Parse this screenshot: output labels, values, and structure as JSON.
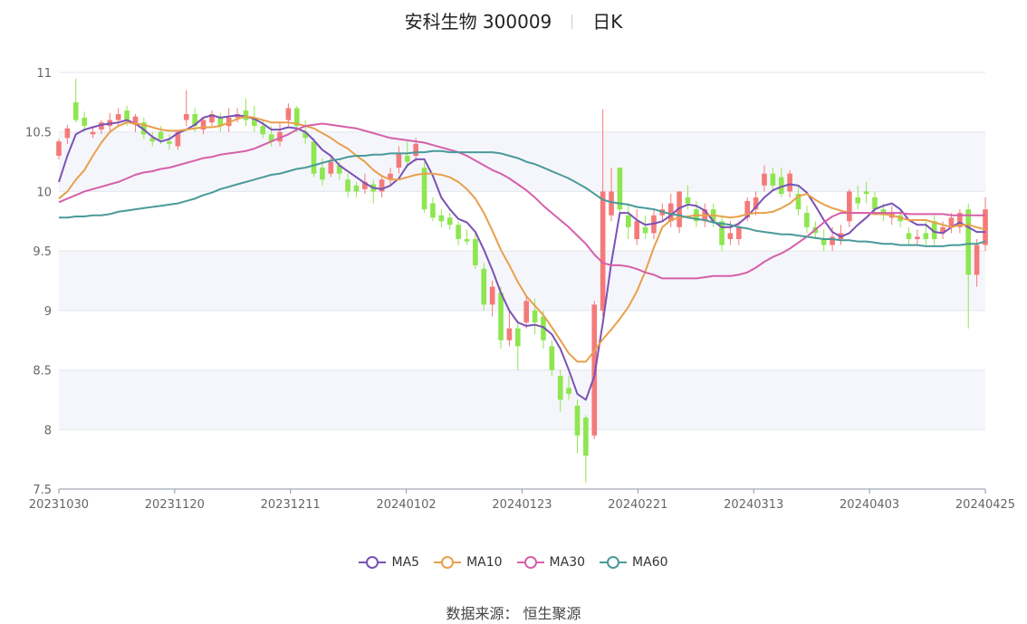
{
  "header": {
    "title": "安科生物 300009",
    "period": "日K"
  },
  "source": "数据来源： 恒生聚源",
  "colors": {
    "up": "#f47a7a",
    "down": "#8ee650",
    "ma5": "#7a52b5",
    "ma10": "#e8a04c",
    "ma30": "#d660a9",
    "ma60": "#4a9a9a"
  },
  "chart_data": {
    "type": "candlestick",
    "ylim": [
      7.5,
      11
    ],
    "yticks": [
      "7.5",
      "8",
      "8.5",
      "9",
      "9.5",
      "10",
      "10.5",
      "11"
    ],
    "xticks": [
      "20231030",
      "20231120",
      "20231211",
      "20240102",
      "20240123",
      "20240221",
      "20240313",
      "20240403",
      "20240425"
    ],
    "grid": true,
    "legend_position": "bottom",
    "candles": [
      [
        10.3,
        10.42,
        10.27,
        10.44
      ],
      [
        10.45,
        10.53,
        10.4,
        10.56
      ],
      [
        10.75,
        10.6,
        10.58,
        10.95
      ],
      [
        10.62,
        10.55,
        10.5,
        10.67
      ],
      [
        10.48,
        10.5,
        10.45,
        10.55
      ],
      [
        10.52,
        10.58,
        10.48,
        10.6
      ],
      [
        10.55,
        10.6,
        10.5,
        10.66
      ],
      [
        10.6,
        10.65,
        10.55,
        10.7
      ],
      [
        10.68,
        10.6,
        10.55,
        10.72
      ],
      [
        10.56,
        10.63,
        10.5,
        10.65
      ],
      [
        10.58,
        10.48,
        10.44,
        10.62
      ],
      [
        10.45,
        10.42,
        10.38,
        10.5
      ],
      [
        10.5,
        10.44,
        10.4,
        10.55
      ],
      [
        10.42,
        10.4,
        10.35,
        10.48
      ],
      [
        10.38,
        10.5,
        10.35,
        10.52
      ],
      [
        10.6,
        10.65,
        10.55,
        10.85
      ],
      [
        10.65,
        10.55,
        10.5,
        10.7
      ],
      [
        10.52,
        10.6,
        10.48,
        10.62
      ],
      [
        10.58,
        10.65,
        10.55,
        10.68
      ],
      [
        10.62,
        10.55,
        10.5,
        10.66
      ],
      [
        10.55,
        10.62,
        10.5,
        10.7
      ],
      [
        10.62,
        10.65,
        10.58,
        10.7
      ],
      [
        10.68,
        10.6,
        10.55,
        10.78
      ],
      [
        10.62,
        10.55,
        10.5,
        10.72
      ],
      [
        10.55,
        10.48,
        10.45,
        10.6
      ],
      [
        10.48,
        10.42,
        10.38,
        10.55
      ],
      [
        10.42,
        10.5,
        10.38,
        10.58
      ],
      [
        10.6,
        10.7,
        10.55,
        10.74
      ],
      [
        10.7,
        10.55,
        10.5,
        10.72
      ],
      [
        10.5,
        10.45,
        10.4,
        10.6
      ],
      [
        10.42,
        10.15,
        10.12,
        10.45
      ],
      [
        10.2,
        10.1,
        10.05,
        10.28
      ],
      [
        10.15,
        10.25,
        10.12,
        10.3
      ],
      [
        10.22,
        10.15,
        10.1,
        10.25
      ],
      [
        10.1,
        10.0,
        9.95,
        10.15
      ],
      [
        10.05,
        10.0,
        9.95,
        10.08
      ],
      [
        10.02,
        10.08,
        9.98,
        10.15
      ],
      [
        10.06,
        10.0,
        9.9,
        10.1
      ],
      [
        10.0,
        10.1,
        9.95,
        10.12
      ],
      [
        10.1,
        10.15,
        10.05,
        10.2
      ],
      [
        10.2,
        10.32,
        10.15,
        10.38
      ],
      [
        10.3,
        10.25,
        10.2,
        10.42
      ],
      [
        10.3,
        10.4,
        10.25,
        10.45
      ],
      [
        10.2,
        9.85,
        9.82,
        10.25
      ],
      [
        9.9,
        9.78,
        9.75,
        9.95
      ],
      [
        9.8,
        9.75,
        9.7,
        9.85
      ],
      [
        9.78,
        9.72,
        9.68,
        9.82
      ],
      [
        9.72,
        9.6,
        9.55,
        9.75
      ],
      [
        9.6,
        9.58,
        9.55,
        9.68
      ],
      [
        9.6,
        9.38,
        9.35,
        9.65
      ],
      [
        9.35,
        9.05,
        9.0,
        9.4
      ],
      [
        9.05,
        9.2,
        8.95,
        9.25
      ],
      [
        9.15,
        8.75,
        8.68,
        9.2
      ],
      [
        8.75,
        8.85,
        8.7,
        9.0
      ],
      [
        8.85,
        8.7,
        8.5,
        8.9
      ],
      [
        8.9,
        9.08,
        8.85,
        9.12
      ],
      [
        9.0,
        8.9,
        8.8,
        9.1
      ],
      [
        8.95,
        8.75,
        8.68,
        9.0
      ],
      [
        8.7,
        8.5,
        8.45,
        8.75
      ],
      [
        8.45,
        8.25,
        8.15,
        8.5
      ],
      [
        8.35,
        8.3,
        8.25,
        8.45
      ],
      [
        8.2,
        7.95,
        7.8,
        8.25
      ],
      [
        8.1,
        7.78,
        7.55,
        8.12
      ],
      [
        7.95,
        9.05,
        7.92,
        9.08
      ],
      [
        9.0,
        10.0,
        8.95,
        10.69
      ],
      [
        9.8,
        10.0,
        9.75,
        10.2
      ],
      [
        10.2,
        9.85,
        9.8,
        10.2
      ],
      [
        9.8,
        9.7,
        9.6,
        9.9
      ],
      [
        9.6,
        9.75,
        9.55,
        9.85
      ],
      [
        9.7,
        9.65,
        9.6,
        9.8
      ],
      [
        9.65,
        9.8,
        9.6,
        9.85
      ],
      [
        9.8,
        9.85,
        9.75,
        9.9
      ],
      [
        9.75,
        9.9,
        9.7,
        9.98
      ],
      [
        9.7,
        10.0,
        9.65,
        10.0
      ],
      [
        9.95,
        9.9,
        9.85,
        10.05
      ],
      [
        9.85,
        9.75,
        9.7,
        9.92
      ],
      [
        9.75,
        9.85,
        9.7,
        9.9
      ],
      [
        9.85,
        9.75,
        9.7,
        9.9
      ],
      [
        9.75,
        9.55,
        9.5,
        9.8
      ],
      [
        9.6,
        9.65,
        9.55,
        9.75
      ],
      [
        9.6,
        9.7,
        9.55,
        9.75
      ],
      [
        9.78,
        9.92,
        9.75,
        9.95
      ],
      [
        9.85,
        9.95,
        9.8,
        10.0
      ],
      [
        10.05,
        10.15,
        10.0,
        10.22
      ],
      [
        10.15,
        10.05,
        10.0,
        10.2
      ],
      [
        10.12,
        9.98,
        9.95,
        10.2
      ],
      [
        10.0,
        10.15,
        9.95,
        10.18
      ],
      [
        9.98,
        9.85,
        9.8,
        10.05
      ],
      [
        9.82,
        9.7,
        9.65,
        9.88
      ],
      [
        9.7,
        9.65,
        9.6,
        9.75
      ],
      [
        9.6,
        9.55,
        9.5,
        9.68
      ],
      [
        9.55,
        9.62,
        9.5,
        9.7
      ],
      [
        9.6,
        9.65,
        9.55,
        9.72
      ],
      [
        9.75,
        10.0,
        9.7,
        10.02
      ],
      [
        9.95,
        9.9,
        9.85,
        10.05
      ],
      [
        10.0,
        9.98,
        9.9,
        10.08
      ],
      [
        9.95,
        9.85,
        9.8,
        10.0
      ],
      [
        9.85,
        9.8,
        9.75,
        9.9
      ],
      [
        9.78,
        9.82,
        9.72,
        9.88
      ],
      [
        9.8,
        9.75,
        9.7,
        9.85
      ],
      [
        9.65,
        9.6,
        9.55,
        9.7
      ],
      [
        9.6,
        9.62,
        9.55,
        9.68
      ],
      [
        9.65,
        9.6,
        9.55,
        9.75
      ],
      [
        9.75,
        9.6,
        9.55,
        9.8
      ],
      [
        9.65,
        9.7,
        9.6,
        9.75
      ],
      [
        9.7,
        9.78,
        9.65,
        9.82
      ],
      [
        9.7,
        9.82,
        9.65,
        9.85
      ],
      [
        9.85,
        9.3,
        8.85,
        9.9
      ],
      [
        9.3,
        9.55,
        9.2,
        9.6
      ],
      [
        9.55,
        9.85,
        9.5,
        9.95
      ]
    ],
    "series": [
      {
        "name": "MA5",
        "values": [
          10.08,
          10.3,
          10.48,
          10.52,
          10.54,
          10.56,
          10.57,
          10.58,
          10.6,
          10.57,
          10.52,
          10.46,
          10.42,
          10.44,
          10.49,
          10.52,
          10.56,
          10.62,
          10.64,
          10.62,
          10.63,
          10.64,
          10.63,
          10.61,
          10.57,
          10.52,
          10.52,
          10.54,
          10.53,
          10.5,
          10.43,
          10.35,
          10.3,
          10.22,
          10.17,
          10.12,
          10.07,
          10.03,
          10.02,
          10.05,
          10.11,
          10.22,
          10.27,
          10.27,
          10.13,
          9.95,
          9.85,
          9.77,
          9.74,
          9.66,
          9.51,
          9.34,
          9.15,
          9.0,
          8.9,
          8.87,
          8.88,
          8.86,
          8.8,
          8.68,
          8.5,
          8.3,
          8.25,
          8.45,
          8.9,
          9.4,
          9.82,
          9.82,
          9.76,
          9.72,
          9.73,
          9.75,
          9.8,
          9.86,
          9.89,
          9.88,
          9.84,
          9.75,
          9.7,
          9.7,
          9.73,
          9.79,
          9.87,
          9.95,
          10.01,
          10.04,
          10.06,
          10.05,
          9.99,
          9.88,
          9.76,
          9.66,
          9.62,
          9.65,
          9.72,
          9.78,
          9.85,
          9.88,
          9.9,
          9.85,
          9.76,
          9.72,
          9.72,
          9.66,
          9.65,
          9.7,
          9.74,
          9.7,
          9.66,
          9.66
        ]
      },
      {
        "name": "MA10",
        "values": [
          9.94,
          10.0,
          10.1,
          10.18,
          10.3,
          10.41,
          10.5,
          10.55,
          10.58,
          10.57,
          10.56,
          10.54,
          10.52,
          10.51,
          10.51,
          10.52,
          10.53,
          10.54,
          10.54,
          10.55,
          10.58,
          10.61,
          10.63,
          10.62,
          10.6,
          10.58,
          10.58,
          10.58,
          10.57,
          10.55,
          10.53,
          10.49,
          10.45,
          10.4,
          10.36,
          10.3,
          10.25,
          10.18,
          10.13,
          10.1,
          10.1,
          10.12,
          10.14,
          10.15,
          10.15,
          10.14,
          10.12,
          10.08,
          10.02,
          9.94,
          9.82,
          9.67,
          9.51,
          9.38,
          9.24,
          9.12,
          9.04,
          8.96,
          8.86,
          8.75,
          8.64,
          8.57,
          8.57,
          8.66,
          8.76,
          8.84,
          8.93,
          9.03,
          9.16,
          9.33,
          9.53,
          9.7,
          9.76,
          9.78,
          9.79,
          9.8,
          9.8,
          9.8,
          9.79,
          9.78,
          9.79,
          9.81,
          9.82,
          9.82,
          9.83,
          9.86,
          9.9,
          9.96,
          9.98,
          9.93,
          9.89,
          9.86,
          9.84,
          9.82,
          9.82,
          9.82,
          9.81,
          9.81,
          9.8,
          9.78,
          9.76,
          9.76,
          9.76,
          9.74,
          9.72,
          9.7,
          9.72,
          9.72,
          9.7,
          9.68
        ]
      },
      {
        "name": "MA30",
        "values": [
          9.91,
          9.94,
          9.97,
          10.0,
          10.02,
          10.04,
          10.06,
          10.08,
          10.11,
          10.14,
          10.16,
          10.17,
          10.19,
          10.2,
          10.22,
          10.24,
          10.26,
          10.28,
          10.29,
          10.31,
          10.32,
          10.33,
          10.34,
          10.36,
          10.39,
          10.42,
          10.45,
          10.48,
          10.52,
          10.55,
          10.56,
          10.57,
          10.56,
          10.55,
          10.54,
          10.53,
          10.51,
          10.49,
          10.47,
          10.45,
          10.44,
          10.43,
          10.42,
          10.41,
          10.39,
          10.37,
          10.35,
          10.33,
          10.3,
          10.26,
          10.22,
          10.18,
          10.15,
          10.11,
          10.06,
          10.01,
          9.95,
          9.88,
          9.82,
          9.76,
          9.7,
          9.63,
          9.56,
          9.47,
          9.4,
          9.38,
          9.38,
          9.37,
          9.35,
          9.32,
          9.3,
          9.27,
          9.27,
          9.27,
          9.27,
          9.27,
          9.28,
          9.29,
          9.29,
          9.29,
          9.3,
          9.32,
          9.36,
          9.41,
          9.45,
          9.48,
          9.52,
          9.57,
          9.62,
          9.68,
          9.74,
          9.79,
          9.82,
          9.82,
          9.82,
          9.82,
          9.82,
          9.82,
          9.82,
          9.82,
          9.81,
          9.81,
          9.81,
          9.81,
          9.81,
          9.8,
          9.8,
          9.8,
          9.8,
          9.8
        ]
      },
      {
        "name": "MA60",
        "values": [
          9.78,
          9.78,
          9.79,
          9.79,
          9.8,
          9.8,
          9.81,
          9.83,
          9.84,
          9.85,
          9.86,
          9.87,
          9.88,
          9.89,
          9.9,
          9.92,
          9.94,
          9.97,
          9.99,
          10.02,
          10.04,
          10.06,
          10.08,
          10.1,
          10.12,
          10.14,
          10.15,
          10.17,
          10.19,
          10.2,
          10.22,
          10.24,
          10.26,
          10.27,
          10.29,
          10.3,
          10.3,
          10.31,
          10.31,
          10.32,
          10.32,
          10.32,
          10.33,
          10.33,
          10.34,
          10.34,
          10.33,
          10.33,
          10.33,
          10.33,
          10.33,
          10.33,
          10.32,
          10.3,
          10.28,
          10.25,
          10.23,
          10.2,
          10.17,
          10.14,
          10.11,
          10.07,
          10.03,
          9.98,
          9.93,
          9.91,
          9.9,
          9.89,
          9.87,
          9.86,
          9.85,
          9.83,
          9.81,
          9.8,
          9.78,
          9.77,
          9.76,
          9.74,
          9.73,
          9.72,
          9.7,
          9.69,
          9.67,
          9.66,
          9.65,
          9.64,
          9.64,
          9.63,
          9.62,
          9.61,
          9.6,
          9.6,
          9.59,
          9.59,
          9.58,
          9.58,
          9.57,
          9.56,
          9.56,
          9.55,
          9.55,
          9.55,
          9.54,
          9.54,
          9.54,
          9.55,
          9.55,
          9.56,
          9.56,
          9.58
        ]
      }
    ]
  }
}
